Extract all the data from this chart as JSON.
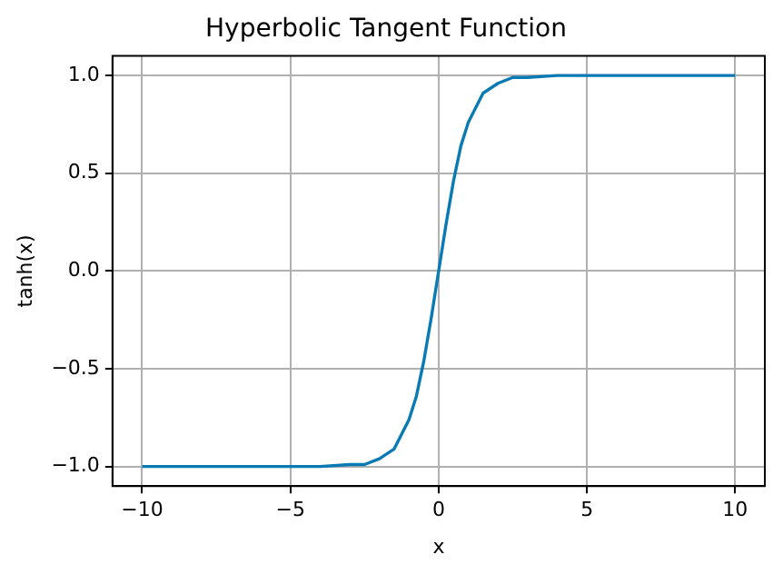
{
  "chart_data": {
    "type": "line",
    "title": "Hyperbolic Tangent Function",
    "xlabel": "x",
    "ylabel": "tanh(x)",
    "x": [
      -10,
      -5,
      -4,
      -3,
      -2.5,
      -2,
      -1.5,
      -1,
      -0.75,
      -0.5,
      -0.25,
      0,
      0.25,
      0.5,
      0.75,
      1,
      1.5,
      2,
      2.5,
      3,
      4,
      5,
      10
    ],
    "series": [
      {
        "color": "#0a7ab5",
        "values": [
          -1,
          -1,
          -1,
          -0.99,
          -0.99,
          -0.96,
          -0.91,
          -0.76,
          -0.64,
          -0.46,
          -0.24,
          0,
          0.24,
          0.46,
          0.64,
          0.76,
          0.91,
          0.96,
          0.99,
          0.99,
          1,
          1,
          1
        ]
      }
    ],
    "xlim": [
      -11,
      11
    ],
    "xticks": [
      {
        "value": -10,
        "label": "−10"
      },
      {
        "value": -5,
        "label": "−5"
      },
      0,
      5,
      10
    ],
    "ylim": [
      -1.1,
      1.1
    ],
    "yticks": [
      {
        "value": -1,
        "label": "−1.0"
      },
      {
        "value": -0.5,
        "label": "−0.5"
      },
      {
        "value": 0,
        "label": "0.0"
      },
      {
        "value": 0.5,
        "label": "0.5"
      },
      {
        "value": 1,
        "label": "1.0"
      }
    ],
    "grid": true,
    "legend": false,
    "marker": "none",
    "line_style": "solid"
  }
}
